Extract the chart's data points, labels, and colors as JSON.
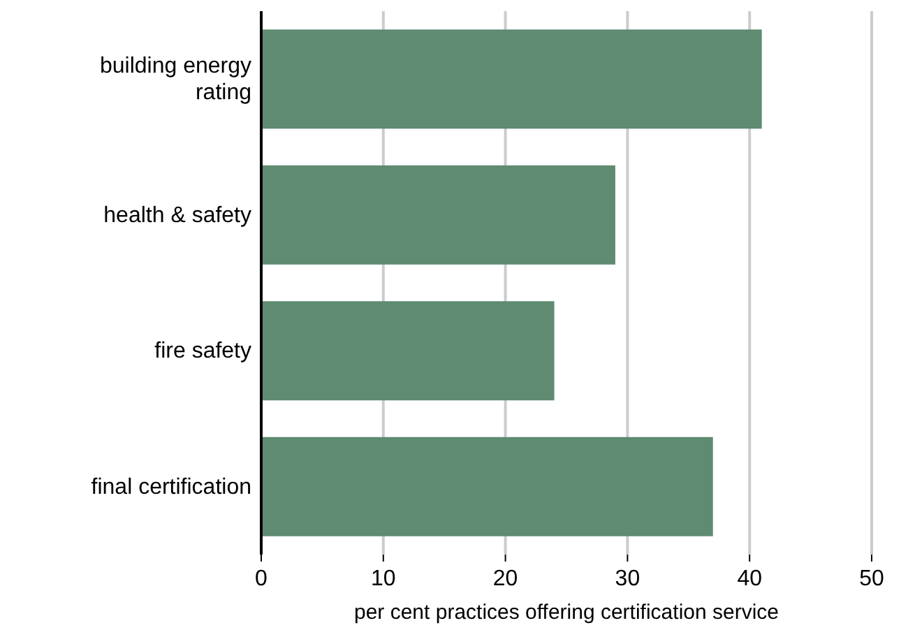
{
  "chart_data": {
    "type": "bar",
    "orientation": "horizontal",
    "categories": [
      "building energy rating",
      "health & safety",
      "fire safety",
      "final certification"
    ],
    "values": [
      41,
      29,
      24,
      37
    ],
    "color": "#5e8b72",
    "xlim": [
      0,
      50
    ],
    "xticks": [
      0,
      10,
      20,
      30,
      40,
      50
    ],
    "xlabel": "per cent practices offering certification service",
    "grid": "x"
  }
}
